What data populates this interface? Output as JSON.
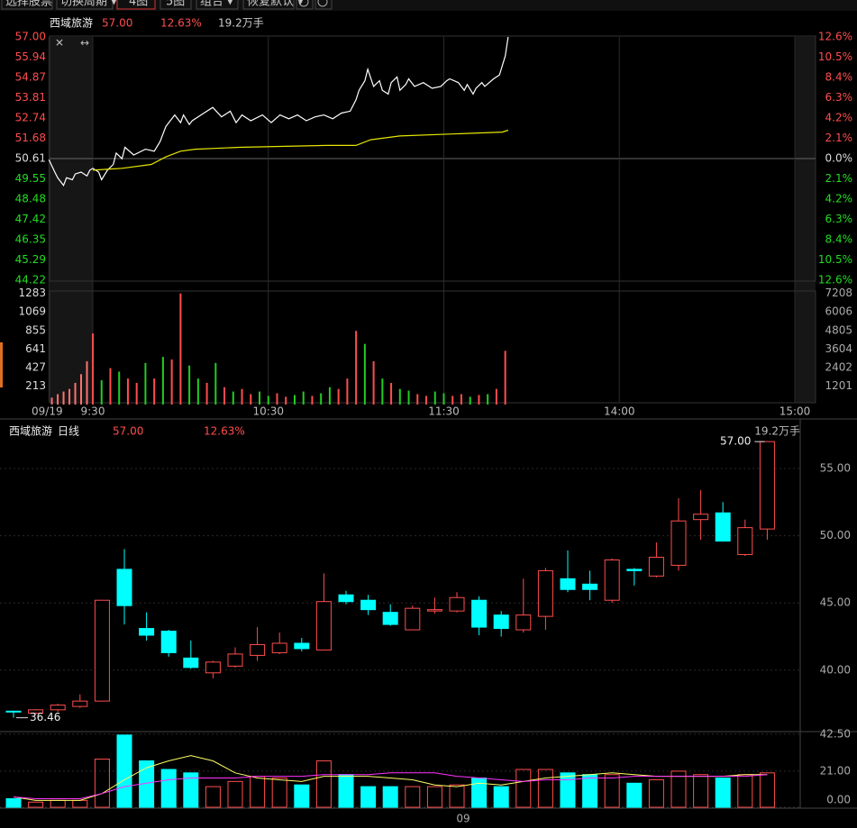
{
  "toolbar": [
    "选择股票",
    "切换周期 ▾",
    "4图",
    "5图",
    "组合 ▾",
    "恢复默认 ▾"
  ],
  "chart_data": [
    {
      "type": "line",
      "title": "西域旅游",
      "price_label": "57.00",
      "change_label": "12.63%",
      "volume_label": "19.2万手",
      "baseline": 50.61,
      "up_color": "#ff4d4d",
      "down_color": "#22dd22",
      "flat_color": "#dddddd",
      "grid": false,
      "xlim": [
        -15,
        240
      ],
      "xticks": [
        {
          "value": -15,
          "label": "09/19"
        },
        {
          "value": 0,
          "label": "9:30"
        },
        {
          "value": 60,
          "label": "10:30"
        },
        {
          "value": 120,
          "label": "11:30"
        },
        {
          "value": 180,
          "label": "14:00"
        },
        {
          "value": 240,
          "label": "15:00"
        }
      ],
      "ylim": [
        44.22,
        57
      ],
      "yticks": [
        {
          "value": 57,
          "label": "57.00"
        },
        55.94,
        54.87,
        53.81,
        52.74,
        51.68,
        50.61,
        49.55,
        48.48,
        47.42,
        46.35,
        45.29,
        44.22
      ],
      "y2lim": [
        -12.6,
        12.6
      ],
      "y2ticks": [
        {
          "value": 12.6,
          "label": "12.6%"
        },
        {
          "value": 10.5,
          "label": "10.5%"
        },
        {
          "value": 8.4,
          "label": "8.4%"
        },
        {
          "value": 6.3,
          "label": "6.3%"
        },
        {
          "value": 4.2,
          "label": "4.2%"
        },
        {
          "value": 2.1,
          "label": "2.1%"
        },
        {
          "value": 0,
          "label": "0.0%"
        },
        {
          "value": -2.1,
          "label": "2.1%"
        },
        {
          "value": -4.2,
          "label": "4.2%"
        },
        {
          "value": -6.3,
          "label": "6.3%"
        },
        {
          "value": -8.4,
          "label": "8.4%"
        },
        {
          "value": -10.5,
          "label": "10.5%"
        },
        {
          "value": -12.6,
          "label": "12.6%"
        }
      ],
      "series": [
        {
          "color": "#ffffff",
          "x": [
            -15,
            -13,
            -12,
            -10,
            -9,
            -7,
            -6,
            -4,
            -2,
            -1,
            0,
            2,
            3,
            5,
            7,
            8,
            10,
            11,
            14,
            18,
            21,
            23,
            25,
            28,
            30,
            31,
            33,
            34,
            38,
            41,
            44,
            47,
            49,
            51,
            54,
            58,
            61,
            64,
            67,
            70,
            73,
            76,
            79,
            82,
            85,
            88,
            90,
            91,
            93,
            94,
            96,
            98,
            99,
            101,
            102,
            104,
            105,
            107,
            108,
            110,
            113,
            116,
            119,
            121,
            122,
            125,
            127,
            128,
            130,
            131,
            133,
            134,
            137,
            139,
            141,
            142
          ],
          "values": [
            50.55,
            49.9,
            49.6,
            49.2,
            49.6,
            49.5,
            49.8,
            49.9,
            49.7,
            50.0,
            50.1,
            49.9,
            49.5,
            50.0,
            50.3,
            50.9,
            50.6,
            51.2,
            50.8,
            51.1,
            51.0,
            51.5,
            52.3,
            52.9,
            52.5,
            52.9,
            52.4,
            52.6,
            53.0,
            53.3,
            52.8,
            53.1,
            52.5,
            52.9,
            52.6,
            52.9,
            52.5,
            52.9,
            52.7,
            52.9,
            52.6,
            52.8,
            52.9,
            52.7,
            53.0,
            53.1,
            53.7,
            54.2,
            54.7,
            55.3,
            54.4,
            54.7,
            54.2,
            54.0,
            54.6,
            54.9,
            54.2,
            54.5,
            54.8,
            54.4,
            54.6,
            54.3,
            54.4,
            54.7,
            54.8,
            54.6,
            54.2,
            54.5,
            54.0,
            54.3,
            54.6,
            54.4,
            54.8,
            55.0,
            56.0,
            57.0
          ]
        },
        {
          "color": "#e6e600",
          "x": [
            0,
            10,
            20,
            25,
            30,
            35,
            50,
            80,
            90,
            95,
            105,
            140,
            142
          ],
          "values": [
            50.0,
            50.1,
            50.3,
            50.7,
            51.0,
            51.1,
            51.2,
            51.3,
            51.3,
            51.6,
            51.8,
            52.0,
            52.1
          ]
        }
      ]
    },
    {
      "type": "bar",
      "xlim": [
        -15,
        240
      ],
      "ylim": [
        0,
        1300
      ],
      "y2lim": [
        0,
        7303
      ],
      "yticks": [
        1283,
        1069,
        855,
        641,
        427,
        213
      ],
      "y2ticks": [
        7208,
        6006,
        4805,
        3604,
        2402,
        1201
      ],
      "x": [
        -14,
        -12,
        -10,
        -8,
        -6,
        -4,
        -2,
        0,
        3,
        6,
        9,
        12,
        15,
        18,
        21,
        24,
        27,
        30,
        33,
        36,
        39,
        42,
        45,
        48,
        51,
        54,
        57,
        60,
        63,
        66,
        69,
        72,
        75,
        78,
        81,
        84,
        87,
        90,
        93,
        96,
        99,
        102,
        105,
        108,
        111,
        114,
        117,
        120,
        123,
        126,
        129,
        132,
        135,
        138,
        141
      ],
      "values": [
        80,
        120,
        150,
        180,
        250,
        350,
        500,
        820,
        280,
        420,
        380,
        300,
        250,
        480,
        300,
        550,
        520,
        1283,
        450,
        300,
        250,
        480,
        200,
        150,
        180,
        120,
        150,
        100,
        130,
        90,
        110,
        150,
        100,
        130,
        200,
        180,
        300,
        850,
        700,
        500,
        300,
        250,
        180,
        160,
        120,
        100,
        150,
        130,
        100,
        120,
        90,
        110,
        120,
        180,
        620
      ],
      "colors": [
        "#ff7070",
        "#ff7070",
        "#ff7070",
        "#ff7070",
        "#ff7070",
        "#ff7070",
        "#ff7070",
        "#ff4d4d",
        "#22cc22",
        "#ff4d4d",
        "#22cc22",
        "#ff4d4d",
        "#ff4d4d",
        "#22cc22",
        "#ff4d4d",
        "#22cc22",
        "#ff4d4d",
        "#ff4d4d",
        "#22cc22",
        "#22cc22",
        "#ff4d4d",
        "#22cc22",
        "#ff4d4d",
        "#22cc22",
        "#ff4d4d",
        "#ff4d4d",
        "#22cc22",
        "#22cc22",
        "#ff4d4d",
        "#ff4d4d",
        "#22cc22",
        "#22cc22",
        "#ff4d4d",
        "#22cc22",
        "#22cc22",
        "#ff4d4d",
        "#ff4d4d",
        "#ff4d4d",
        "#22cc22",
        "#ff4d4d",
        "#22cc22",
        "#ff4d4d",
        "#22cc22",
        "#22cc22",
        "#ff4d4d",
        "#ff4d4d",
        "#22cc22",
        "#22cc22",
        "#ff4d4d",
        "#ff4d4d",
        "#22cc22",
        "#ff4d4d",
        "#22cc22",
        "#ff4d4d",
        "#ff4d4d"
      ]
    },
    {
      "type": "candlestick",
      "title": "西域旅游",
      "period": "日线",
      "price_label": "57.00",
      "change_label": "12.63%",
      "volume_label": "19.2万手",
      "up_color": "#ff4d4d",
      "down_color": "#00ffff",
      "categories": [
        null,
        null,
        null,
        null,
        null,
        null,
        null,
        null,
        null,
        null,
        null,
        null,
        null,
        null,
        null,
        null,
        null,
        null,
        null,
        null,
        "09",
        null,
        null,
        null,
        null,
        null,
        null,
        null,
        null,
        null,
        null,
        null,
        null,
        null,
        null
      ],
      "ylim": [
        35.43,
        58.35
      ],
      "yticks": [
        {
          "value": 55,
          "label": "55.00"
        },
        {
          "value": 50,
          "label": "50.00"
        },
        {
          "value": 45,
          "label": "45.00"
        },
        {
          "value": 40,
          "label": "40.00"
        }
      ],
      "open": [
        36.95,
        36.8,
        37.05,
        37.3,
        37.7,
        47.5,
        43.1,
        42.9,
        40.9,
        39.8,
        40.3,
        41.1,
        41.3,
        42.0,
        41.5,
        45.6,
        45.2,
        44.3,
        43.0,
        44.4,
        44.4,
        45.2,
        44.1,
        43.0,
        44.0,
        46.8,
        46.4,
        45.2,
        47.5,
        47.0,
        47.8,
        51.2,
        51.7,
        48.6,
        50.5
      ],
      "close": [
        36.9,
        37.05,
        37.4,
        37.7,
        45.2,
        44.8,
        42.6,
        41.3,
        40.2,
        40.6,
        41.2,
        41.9,
        42.0,
        41.6,
        45.1,
        45.1,
        44.5,
        43.4,
        44.6,
        44.5,
        45.4,
        43.2,
        43.1,
        44.1,
        47.4,
        46.0,
        46.0,
        48.2,
        47.4,
        48.4,
        51.1,
        51.6,
        49.6,
        50.6,
        57.0
      ],
      "high": [
        37.0,
        37.1,
        37.5,
        38.2,
        45.2,
        49.0,
        44.3,
        43.0,
        42.2,
        40.7,
        41.7,
        43.2,
        42.8,
        42.4,
        47.2,
        45.9,
        45.6,
        44.9,
        44.8,
        45.4,
        45.8,
        45.5,
        44.4,
        46.8,
        47.6,
        48.9,
        47.4,
        48.3,
        47.6,
        49.5,
        52.8,
        53.4,
        52.5,
        51.2,
        57.0
      ],
      "low": [
        36.46,
        36.7,
        36.9,
        37.2,
        37.7,
        43.4,
        42.2,
        41.0,
        40.1,
        39.4,
        40.2,
        40.7,
        41.2,
        41.4,
        41.5,
        44.9,
        44.1,
        43.3,
        43.0,
        44.2,
        44.3,
        42.6,
        42.5,
        42.8,
        43.0,
        45.8,
        45.2,
        45.0,
        46.3,
        46.9,
        47.4,
        49.7,
        49.6,
        48.5,
        49.7
      ],
      "annotations": [
        {
          "value": 57,
          "label": "57.00"
        },
        {
          "value": 36.46,
          "label": "36.46"
        }
      ]
    },
    {
      "type": "bar",
      "ylim": [
        0,
        44
      ],
      "hollow_color": "#ff4d4d",
      "yticks": [
        {
          "value": 42.5,
          "label": "42.50"
        },
        {
          "value": 21,
          "label": "21.00"
        },
        {
          "value": 0,
          "label": "0.00"
        }
      ],
      "values": [
        5,
        3,
        4,
        4,
        28,
        42,
        27,
        22,
        20,
        12,
        15,
        18,
        17,
        13,
        27,
        19,
        12,
        12,
        12,
        12,
        13,
        17,
        12,
        22,
        22,
        20,
        19,
        19,
        14,
        16,
        21,
        19,
        17,
        19,
        20
      ],
      "colors": [
        "#00ffff",
        "#ff4d4d",
        "#ff4d4d",
        "#ff4d4d",
        "#ff4d4d",
        "#00ffff",
        "#00ffff",
        "#00ffff",
        "#00ffff",
        "#ff4d4d",
        "#ff4d4d",
        "#ff4d4d",
        "#ff4d4d",
        "#00ffff",
        "#ff4d4d",
        "#00ffff",
        "#00ffff",
        "#00ffff",
        "#ff4d4d",
        "#ff4d4d",
        "#ff4d4d",
        "#00ffff",
        "#00ffff",
        "#ff4d4d",
        "#ff4d4d",
        "#00ffff",
        "#00ffff",
        "#ff4d4d",
        "#00ffff",
        "#ff4d4d",
        "#ff4d4d",
        "#ff4d4d",
        "#00ffff",
        "#ff4d4d",
        "#ff4d4d"
      ],
      "lines": [
        {
          "color": "#ffff66",
          "values": [
            6,
            4,
            4,
            4,
            8,
            16,
            23,
            27,
            30,
            27,
            20,
            17,
            16,
            15,
            18,
            18,
            18,
            17,
            16,
            13,
            12,
            14,
            13,
            15,
            17,
            18,
            19,
            20,
            19,
            18,
            18,
            18,
            18,
            19,
            19
          ]
        },
        {
          "color": "#ff33ff",
          "values": [
            6,
            5,
            5,
            5,
            8,
            12,
            14,
            16,
            17,
            17,
            17,
            18,
            18,
            18,
            19,
            19,
            19,
            20,
            20,
            20,
            18,
            17,
            16,
            15,
            16,
            16,
            17,
            17,
            18,
            18,
            18,
            18,
            18,
            18,
            19
          ]
        }
      ]
    }
  ]
}
